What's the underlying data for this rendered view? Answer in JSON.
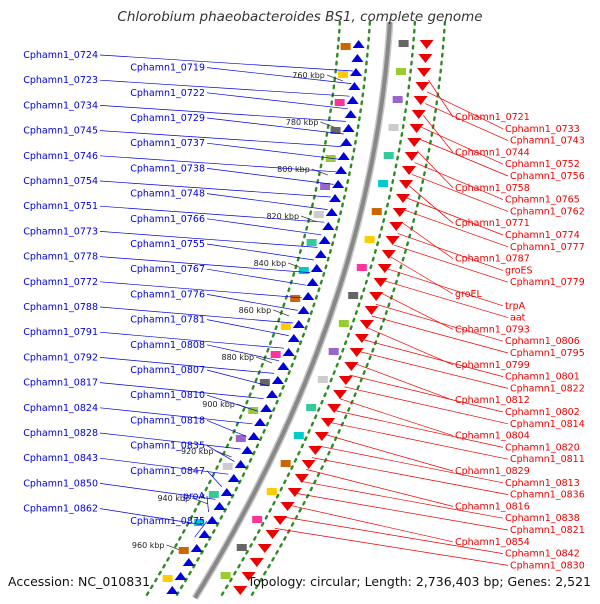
{
  "title": "Chlorobium phaeobacteroides BS1, complete genome",
  "accession": "Accession: NC_010831",
  "topology": "Topology: circular; Length: 2,736,403 bp; Genes: 2,521",
  "colors": {
    "left_strand": "#0000dd",
    "right_strand": "#ee0000",
    "backbone": "#888888",
    "track_dots": "#2e8b22"
  },
  "kbp_ticks": [
    "760 kbp",
    "780 kbp",
    "800 kbp",
    "820 kbp",
    "840 kbp",
    "860 kbp",
    "880 kbp",
    "900 kbp",
    "920 kbp",
    "940 kbp",
    "960 kbp"
  ],
  "left_genes": [
    "Cphamn1_0724",
    "Cphamn1_0719",
    "Cphamn1_0723",
    "Cphamn1_0722",
    "Cphamn1_0734",
    "Cphamn1_0729",
    "Cphamn1_0745",
    "Cphamn1_0737",
    "Cphamn1_0746",
    "Cphamn1_0738",
    "Cphamn1_0754",
    "Cphamn1_0748",
    "Cphamn1_0751",
    "Cphamn1_0766",
    "Cphamn1_0773",
    "Cphamn1_0755",
    "Cphamn1_0778",
    "Cphamn1_0767",
    "Cphamn1_0772",
    "Cphamn1_0776",
    "Cphamn1_0788",
    "Cphamn1_0781",
    "Cphamn1_0791",
    "Cphamn1_0808",
    "Cphamn1_0792",
    "Cphamn1_0807",
    "Cphamn1_0817",
    "Cphamn1_0810",
    "Cphamn1_0824",
    "Cphamn1_0818",
    "Cphamn1_0828",
    "Cphamn1_0835",
    "Cphamn1_0843",
    "Cphamn1_0847",
    "Cphamn1_0850",
    "proA",
    "Cphamn1_0862",
    "Cphamn1_0875"
  ],
  "right_genes": [
    "Cphamn1_0721",
    "Cphamn1_0733",
    "Cphamn1_0743",
    "Cphamn1_0744",
    "Cphamn1_0752",
    "Cphamn1_0756",
    "Cphamn1_0758",
    "Cphamn1_0765",
    "Cphamn1_0762",
    "Cphamn1_0771",
    "Cphamn1_0774",
    "Cphamn1_0777",
    "Cphamn1_0787",
    "groES",
    "Cphamn1_0779",
    "groEL",
    "trpA",
    "aat",
    "Cphamn1_0793",
    "Cphamn1_0806",
    "Cphamn1_0795",
    "Cphamn1_0799",
    "Cphamn1_0801",
    "Cphamn1_0822",
    "Cphamn1_0812",
    "Cphamn1_0802",
    "Cphamn1_0814",
    "Cphamn1_0804",
    "Cphamn1_0820",
    "Cphamn1_0811",
    "Cphamn1_0829",
    "Cphamn1_0813",
    "Cphamn1_0836",
    "Cphamn1_0816",
    "Cphamn1_0838",
    "Cphamn1_0821",
    "Cphamn1_0854",
    "Cphamn1_0842",
    "Cphamn1_0830"
  ]
}
